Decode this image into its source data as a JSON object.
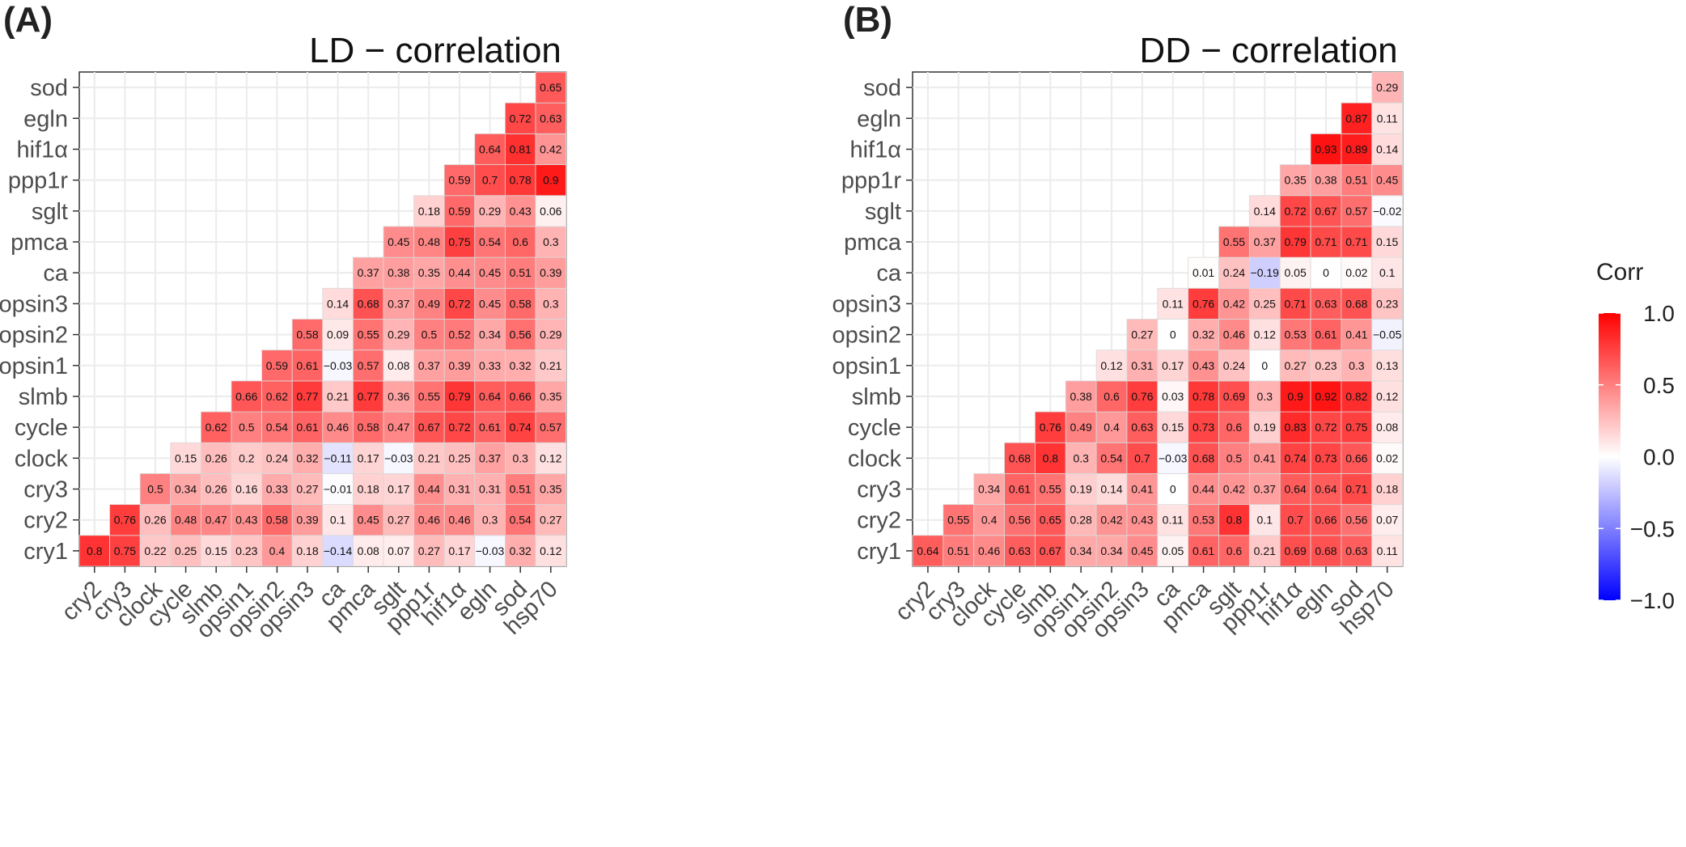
{
  "panels": [
    {
      "letter": "(A)",
      "title": "LD − correlation"
    },
    {
      "letter": "(B)",
      "title": "DD − correlation"
    }
  ],
  "legend": {
    "title": "Corr",
    "ticks": [
      "1.0",
      "0.5",
      "0.0",
      "−0.5",
      "−1.0"
    ],
    "tick_values": [
      1.0,
      0.5,
      0.0,
      -0.5,
      -1.0
    ],
    "low_color": "#0000ff",
    "mid_color": "#ffffff",
    "high_color": "#ff0000"
  },
  "chart_data": [
    {
      "type": "heatmap",
      "title": "LD − correlation",
      "x_categories": [
        "cry2",
        "cry3",
        "clock",
        "cycle",
        "slmb",
        "opsin1",
        "opsin2",
        "opsin3",
        "ca",
        "pmca",
        "sglt",
        "ppp1r",
        "hif1α",
        "egln",
        "sod",
        "hsp70"
      ],
      "y_categories": [
        "cry1",
        "cry2",
        "cry3",
        "clock",
        "cycle",
        "slmb",
        "opsin1",
        "opsin2",
        "opsin3",
        "ca",
        "pmca",
        "sglt",
        "ppp1r",
        "hif1α",
        "egln",
        "sod"
      ],
      "value_range": [
        -1,
        1
      ],
      "values": [
        [
          0.8,
          0.75,
          0.22,
          0.25,
          0.15,
          0.23,
          0.4,
          0.18,
          -0.14,
          0.08,
          0.07,
          0.27,
          0.17,
          -0.03,
          0.32,
          0.12
        ],
        [
          null,
          0.76,
          0.26,
          0.48,
          0.47,
          0.43,
          0.58,
          0.39,
          0.1,
          0.45,
          0.27,
          0.46,
          0.46,
          0.3,
          0.54,
          0.27
        ],
        [
          null,
          null,
          0.5,
          0.34,
          0.26,
          0.16,
          0.33,
          0.27,
          -0.01,
          0.18,
          0.17,
          0.44,
          0.31,
          0.31,
          0.51,
          0.35
        ],
        [
          null,
          null,
          null,
          0.15,
          0.26,
          0.2,
          0.24,
          0.32,
          -0.11,
          0.17,
          -0.03,
          0.21,
          0.25,
          0.37,
          0.3,
          0.12
        ],
        [
          null,
          null,
          null,
          null,
          0.62,
          0.5,
          0.54,
          0.61,
          0.46,
          0.58,
          0.47,
          0.67,
          0.72,
          0.61,
          0.74,
          0.57
        ],
        [
          null,
          null,
          null,
          null,
          null,
          0.66,
          0.62,
          0.77,
          0.21,
          0.77,
          0.36,
          0.55,
          0.79,
          0.64,
          0.66,
          0.35
        ],
        [
          null,
          null,
          null,
          null,
          null,
          null,
          0.59,
          0.61,
          -0.03,
          0.57,
          0.08,
          0.37,
          0.39,
          0.33,
          0.32,
          0.21
        ],
        [
          null,
          null,
          null,
          null,
          null,
          null,
          null,
          0.58,
          0.09,
          0.55,
          0.29,
          0.5,
          0.52,
          0.34,
          0.56,
          0.29
        ],
        [
          null,
          null,
          null,
          null,
          null,
          null,
          null,
          null,
          0.14,
          0.68,
          0.37,
          0.49,
          0.72,
          0.45,
          0.58,
          0.3
        ],
        [
          null,
          null,
          null,
          null,
          null,
          null,
          null,
          null,
          null,
          0.37,
          0.38,
          0.35,
          0.44,
          0.45,
          0.51,
          0.39
        ],
        [
          null,
          null,
          null,
          null,
          null,
          null,
          null,
          null,
          null,
          null,
          0.45,
          0.48,
          0.75,
          0.54,
          0.6,
          0.3
        ],
        [
          null,
          null,
          null,
          null,
          null,
          null,
          null,
          null,
          null,
          null,
          null,
          0.18,
          0.59,
          0.29,
          0.43,
          0.06
        ],
        [
          null,
          null,
          null,
          null,
          null,
          null,
          null,
          null,
          null,
          null,
          null,
          null,
          0.59,
          0.7,
          0.78,
          0.9
        ],
        [
          null,
          null,
          null,
          null,
          null,
          null,
          null,
          null,
          null,
          null,
          null,
          null,
          null,
          0.64,
          0.81,
          0.42
        ],
        [
          null,
          null,
          null,
          null,
          null,
          null,
          null,
          null,
          null,
          null,
          null,
          null,
          null,
          null,
          0.72,
          0.63
        ],
        [
          null,
          null,
          null,
          null,
          null,
          null,
          null,
          null,
          null,
          null,
          null,
          null,
          null,
          null,
          null,
          0.65
        ]
      ]
    },
    {
      "type": "heatmap",
      "title": "DD − correlation",
      "x_categories": [
        "cry2",
        "cry3",
        "clock",
        "cycle",
        "slmb",
        "opsin1",
        "opsin2",
        "opsin3",
        "ca",
        "pmca",
        "sglt",
        "ppp1r",
        "hif1α",
        "egln",
        "sod",
        "hsp70"
      ],
      "y_categories": [
        "cry1",
        "cry2",
        "cry3",
        "clock",
        "cycle",
        "slmb",
        "opsin1",
        "opsin2",
        "opsin3",
        "ca",
        "pmca",
        "sglt",
        "ppp1r",
        "hif1α",
        "egln",
        "sod"
      ],
      "value_range": [
        -1,
        1
      ],
      "values": [
        [
          0.64,
          0.51,
          0.46,
          0.63,
          0.67,
          0.34,
          0.34,
          0.45,
          0.05,
          0.61,
          0.6,
          0.21,
          0.69,
          0.68,
          0.63,
          0.11
        ],
        [
          null,
          0.55,
          0.4,
          0.56,
          0.65,
          0.28,
          0.42,
          0.43,
          0.11,
          0.53,
          0.8,
          0.1,
          0.7,
          0.66,
          0.56,
          0.07
        ],
        [
          null,
          null,
          0.34,
          0.61,
          0.55,
          0.19,
          0.14,
          0.41,
          0,
          0.44,
          0.42,
          0.37,
          0.64,
          0.64,
          0.71,
          0.18
        ],
        [
          null,
          null,
          null,
          0.68,
          0.8,
          0.3,
          0.54,
          0.7,
          -0.03,
          0.68,
          0.5,
          0.41,
          0.74,
          0.73,
          0.66,
          0.02
        ],
        [
          null,
          null,
          null,
          null,
          0.76,
          0.49,
          0.4,
          0.63,
          0.15,
          0.73,
          0.6,
          0.19,
          0.83,
          0.72,
          0.75,
          0.08
        ],
        [
          null,
          null,
          null,
          null,
          null,
          0.38,
          0.6,
          0.76,
          0.03,
          0.78,
          0.69,
          0.3,
          0.9,
          0.92,
          0.82,
          0.12
        ],
        [
          null,
          null,
          null,
          null,
          null,
          null,
          0.12,
          0.31,
          0.17,
          0.43,
          0.24,
          0,
          0.27,
          0.23,
          0.3,
          0.13
        ],
        [
          null,
          null,
          null,
          null,
          null,
          null,
          null,
          0.27,
          0,
          0.32,
          0.46,
          0.12,
          0.53,
          0.61,
          0.41,
          -0.05
        ],
        [
          null,
          null,
          null,
          null,
          null,
          null,
          null,
          null,
          0.11,
          0.76,
          0.42,
          0.25,
          0.71,
          0.63,
          0.68,
          0.23
        ],
        [
          null,
          null,
          null,
          null,
          null,
          null,
          null,
          null,
          null,
          0.01,
          0.24,
          -0.19,
          0.05,
          0,
          0.02,
          0.1
        ],
        [
          null,
          null,
          null,
          null,
          null,
          null,
          null,
          null,
          null,
          null,
          0.55,
          0.37,
          0.79,
          0.71,
          0.71,
          0.15
        ],
        [
          null,
          null,
          null,
          null,
          null,
          null,
          null,
          null,
          null,
          null,
          null,
          0.14,
          0.72,
          0.67,
          0.57,
          -0.02
        ],
        [
          null,
          null,
          null,
          null,
          null,
          null,
          null,
          null,
          null,
          null,
          null,
          null,
          0.35,
          0.38,
          0.51,
          0.45
        ],
        [
          null,
          null,
          null,
          null,
          null,
          null,
          null,
          null,
          null,
          null,
          null,
          null,
          null,
          0.93,
          0.89,
          0.14
        ],
        [
          null,
          null,
          null,
          null,
          null,
          null,
          null,
          null,
          null,
          null,
          null,
          null,
          null,
          null,
          0.87,
          0.11
        ],
        [
          null,
          null,
          null,
          null,
          null,
          null,
          null,
          null,
          null,
          null,
          null,
          null,
          null,
          null,
          null,
          0.29
        ]
      ]
    }
  ]
}
